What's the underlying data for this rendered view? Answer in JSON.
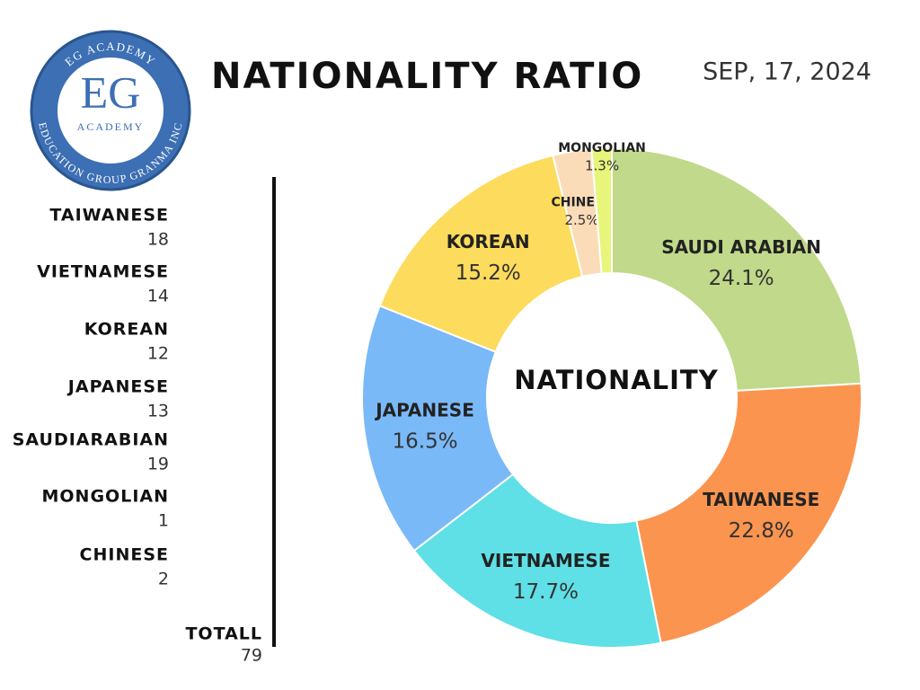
{
  "logo": {
    "top": "EG ACADEMY",
    "mark": "EG",
    "sub": "ACADEMY",
    "bottom": "EDUCATION GROUP GRANMA INC"
  },
  "header": {
    "title": "NATIONALITY RATIO",
    "date": "SEP, 17, 2024"
  },
  "counts": {
    "rows": [
      {
        "label": "TAIWANESE",
        "value": 18
      },
      {
        "label": "VIETNAMESE",
        "value": 14
      },
      {
        "label": "KOREAN",
        "value": 12
      },
      {
        "label": "JAPANESE",
        "value": 13
      },
      {
        "label": "SAUDIARABIAN",
        "value": 19
      },
      {
        "label": "MONGOLIAN",
        "value": 1
      },
      {
        "label": "CHINESE",
        "value": 2
      }
    ],
    "total": {
      "label": "TOTALL",
      "value": 79
    }
  },
  "chart_data": {
    "type": "donut",
    "title": "NATIONALITY",
    "categories": [
      "SAUDI ARABIAN",
      "TAIWANESE",
      "VIETNAMESE",
      "JAPANESE",
      "KOREAN",
      "CHINESE",
      "MONGOLIAN"
    ],
    "values": [
      24.1,
      22.8,
      17.7,
      16.5,
      15.2,
      2.5,
      1.3
    ],
    "value_labels": [
      "24.1%",
      "22.8%",
      "17.7%",
      "16.5%",
      "15.2%",
      "2.5%",
      "1.3%"
    ],
    "colors": [
      "#c0d98a",
      "#fb944f",
      "#5fdfe6",
      "#7ab9f8",
      "#fddb5c",
      "#fbdcb9",
      "#e7f57a"
    ]
  }
}
